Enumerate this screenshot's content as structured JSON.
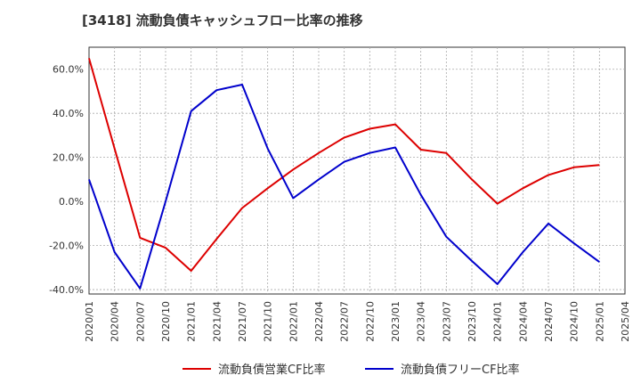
{
  "chart_data": {
    "type": "line",
    "title": "[3418]  流動負債キャッシュフロー比率の推移",
    "xlabel": "",
    "ylabel": "",
    "x": [
      "2020/01",
      "2020/04",
      "2020/07",
      "2020/10",
      "2021/01",
      "2021/04",
      "2021/07",
      "2021/10",
      "2022/01",
      "2022/04",
      "2022/07",
      "2022/10",
      "2023/01",
      "2023/04",
      "2023/07",
      "2023/10",
      "2024/01",
      "2024/04",
      "2024/07",
      "2024/10",
      "2025/01",
      "2025/04"
    ],
    "ylim": [
      -42,
      70
    ],
    "yticks": [
      -40,
      -20,
      0,
      20,
      40,
      60
    ],
    "ytick_labels": [
      "-40.0%",
      "-20.0%",
      "0.0%",
      "20.0%",
      "40.0%",
      "60.0%"
    ],
    "grid": true,
    "legend_position": "bottom",
    "series": [
      {
        "name": "流動負債営業CF比率",
        "color": "#dd0000",
        "points": [
          [
            "2020/01",
            65.0
          ],
          [
            "2020/04",
            24.0
          ],
          [
            "2020/07",
            -16.5
          ],
          [
            "2020/10",
            -21.0
          ],
          [
            "2021/01",
            -31.5
          ],
          [
            "2021/04",
            -17.0
          ],
          [
            "2021/07",
            -3.0
          ],
          [
            "2021/10",
            6.0
          ],
          [
            "2022/01",
            14.5
          ],
          [
            "2022/04",
            22.0
          ],
          [
            "2022/07",
            29.0
          ],
          [
            "2022/10",
            33.0
          ],
          [
            "2023/01",
            35.0
          ],
          [
            "2023/04",
            23.5
          ],
          [
            "2023/07",
            22.0
          ],
          [
            "2023/10",
            10.0
          ],
          [
            "2024/01",
            -1.0
          ],
          [
            "2024/04",
            6.0
          ],
          [
            "2024/07",
            12.0
          ],
          [
            "2024/10",
            15.5
          ],
          [
            "2025/01",
            16.5
          ]
        ]
      },
      {
        "name": "流動負債フリーCF比率",
        "color": "#0000cc",
        "points": [
          [
            "2020/01",
            10.0
          ],
          [
            "2020/04",
            -23.0
          ],
          [
            "2020/07",
            -39.5
          ],
          [
            "2020/10",
            0.0
          ],
          [
            "2021/01",
            41.0
          ],
          [
            "2021/04",
            50.5
          ],
          [
            "2021/07",
            53.0
          ],
          [
            "2021/10",
            24.0
          ],
          [
            "2022/01",
            1.5
          ],
          [
            "2022/04",
            10.0
          ],
          [
            "2022/07",
            18.0
          ],
          [
            "2022/10",
            22.0
          ],
          [
            "2023/01",
            24.5
          ],
          [
            "2023/04",
            3.0
          ],
          [
            "2023/07",
            -16.0
          ],
          [
            "2023/10",
            -27.0
          ],
          [
            "2024/01",
            -37.5
          ],
          [
            "2024/04",
            -23.0
          ],
          [
            "2024/07",
            -10.0
          ],
          [
            "2024/10",
            -19.0
          ],
          [
            "2025/01",
            -27.5
          ]
        ]
      }
    ]
  }
}
